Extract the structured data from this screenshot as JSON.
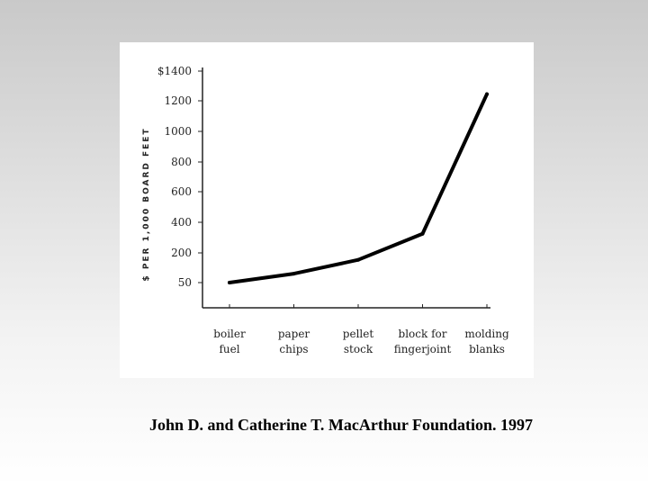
{
  "chart_data": {
    "type": "line",
    "ylabel": "$ PER 1,000 BOARD FEET",
    "categories": [
      [
        "boiler",
        "fuel"
      ],
      [
        "paper",
        "chips"
      ],
      [
        "pellet",
        "stock"
      ],
      [
        "block for",
        "fingerjoint"
      ],
      [
        "molding",
        "blanks"
      ]
    ],
    "y_ticks": [
      "$1400",
      "1200",
      "1000",
      "800",
      "600",
      "400",
      "200",
      "50"
    ],
    "series": [
      {
        "values": [
          50,
          95,
          165,
          325,
          1245
        ]
      }
    ],
    "line_color": "#000000",
    "grid": false
  },
  "caption": "John D. and Catherine T. MacArthur Foundation. 1997"
}
